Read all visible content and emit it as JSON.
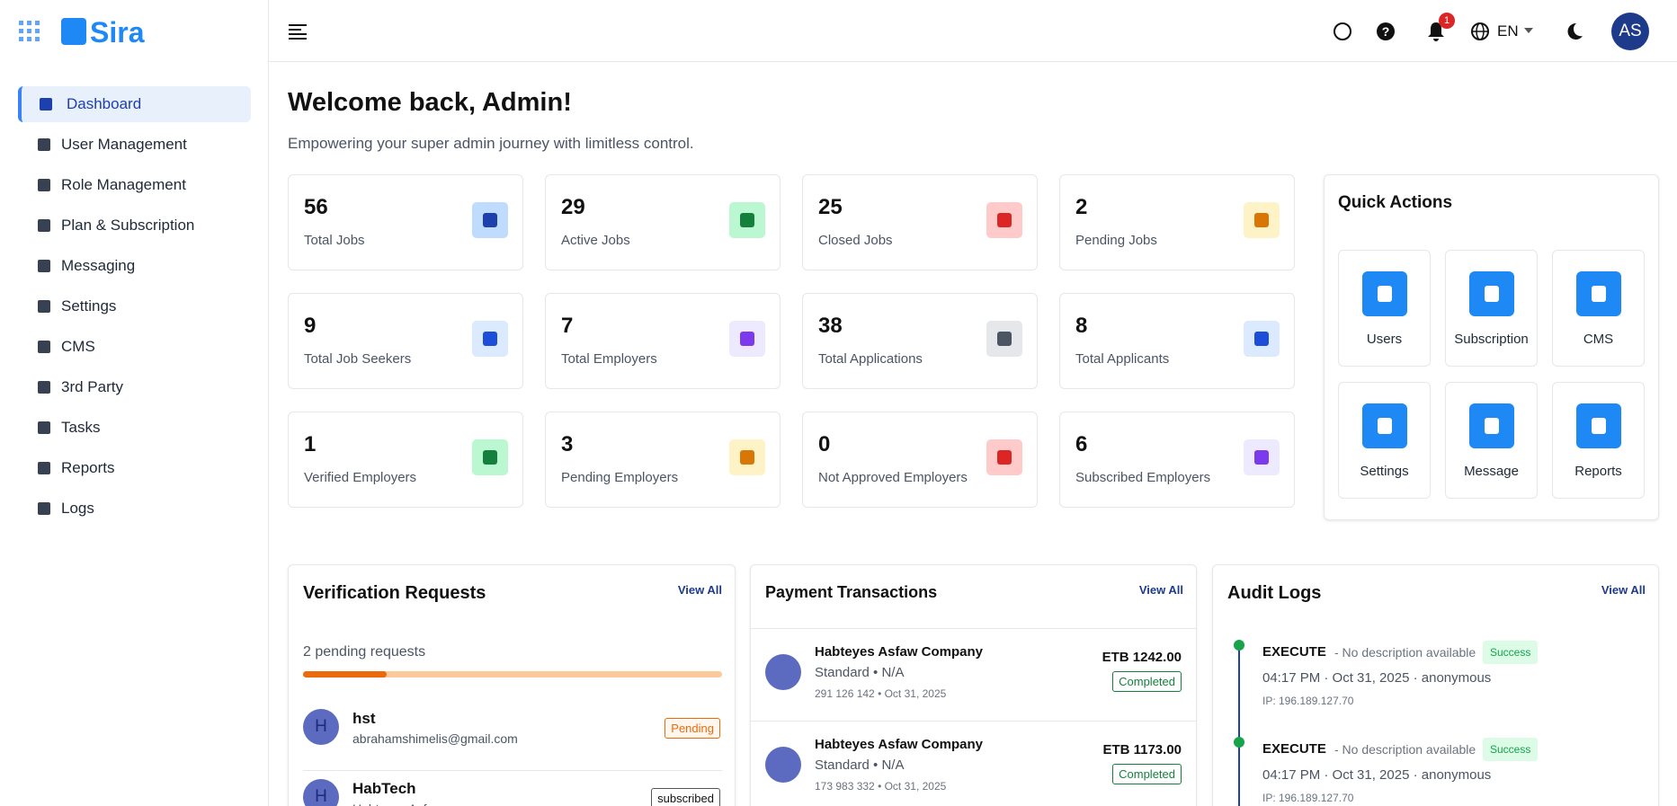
{
  "sidebar": {
    "brand": "Sira",
    "nav": [
      "Dashboard",
      "User Management",
      "Role Management",
      "Plan & Subscription",
      "Messaging",
      "Settings",
      "CMS",
      "3rd Party",
      "Tasks",
      "Reports",
      "Logs"
    ]
  },
  "topbar": {
    "notifications": "1",
    "language": "EN",
    "avatar": "AS"
  },
  "header": {
    "title": "Welcome back, Admin!",
    "subtitle": "Empowering your super admin journey with limitless control."
  },
  "stats": [
    {
      "value": 56,
      "label": "Total Jobs"
    },
    {
      "value": 29,
      "label": "Active Jobs"
    },
    {
      "value": 25,
      "label": "Closed Jobs"
    },
    {
      "value": 2,
      "label": "Pending Jobs"
    },
    {
      "value": 9,
      "label": "Total Job Seekers"
    },
    {
      "value": 7,
      "label": "Total Employers"
    },
    {
      "value": 38,
      "label": "Total Applications"
    },
    {
      "value": 8,
      "label": "Total Applicants"
    },
    {
      "value": 1,
      "label": "Verified Employers"
    },
    {
      "value": 3,
      "label": "Pending Employers"
    },
    {
      "value": 0,
      "label": "Not Approved Employers"
    },
    {
      "value": 6,
      "label": "Subscribed Employers"
    }
  ],
  "quick_actions": {
    "title": "Quick Actions",
    "items": [
      "Users",
      "Subscription",
      "CMS",
      "Settings",
      "Message",
      "Reports"
    ]
  },
  "verification": {
    "title": "Verification Requests",
    "view_all": "View All",
    "summary": "2 pending requests",
    "requests": [
      {
        "initial": "H",
        "name": "hst",
        "email": "abrahamshimelis@gmail.com",
        "status": "Pending"
      },
      {
        "initial": "H",
        "name": "HabTech",
        "email": "Habteyes Asfaw",
        "status": "subscribed"
      }
    ]
  },
  "payments": {
    "title": "Payment Transactions",
    "view_all": "View All",
    "items": [
      {
        "name": "Habteyes Asfaw Company",
        "plan": "Standard • N/A",
        "meta": "291 126 142 • Oct 31, 2025",
        "amount": "ETB 1242.00",
        "status": "Completed"
      },
      {
        "name": "Habteyes Asfaw Company",
        "plan": "Standard • N/A",
        "meta": "173 983 332 • Oct 31, 2025",
        "amount": "ETB 1173.00",
        "status": "Completed"
      }
    ]
  },
  "audit": {
    "title": "Audit Logs",
    "view_all": "View All",
    "items": [
      {
        "action": "EXECUTE",
        "description": "- No description available",
        "status": "Success",
        "time": "04:17 PM · Oct 31, 2025 · anonymous",
        "ip": "IP: 196.189.127.70"
      },
      {
        "action": "EXECUTE",
        "description": "- No description available",
        "status": "Success",
        "time": "04:17 PM · Oct 31, 2025 · anonymous",
        "ip": "IP: 196.189.127.70"
      }
    ]
  }
}
